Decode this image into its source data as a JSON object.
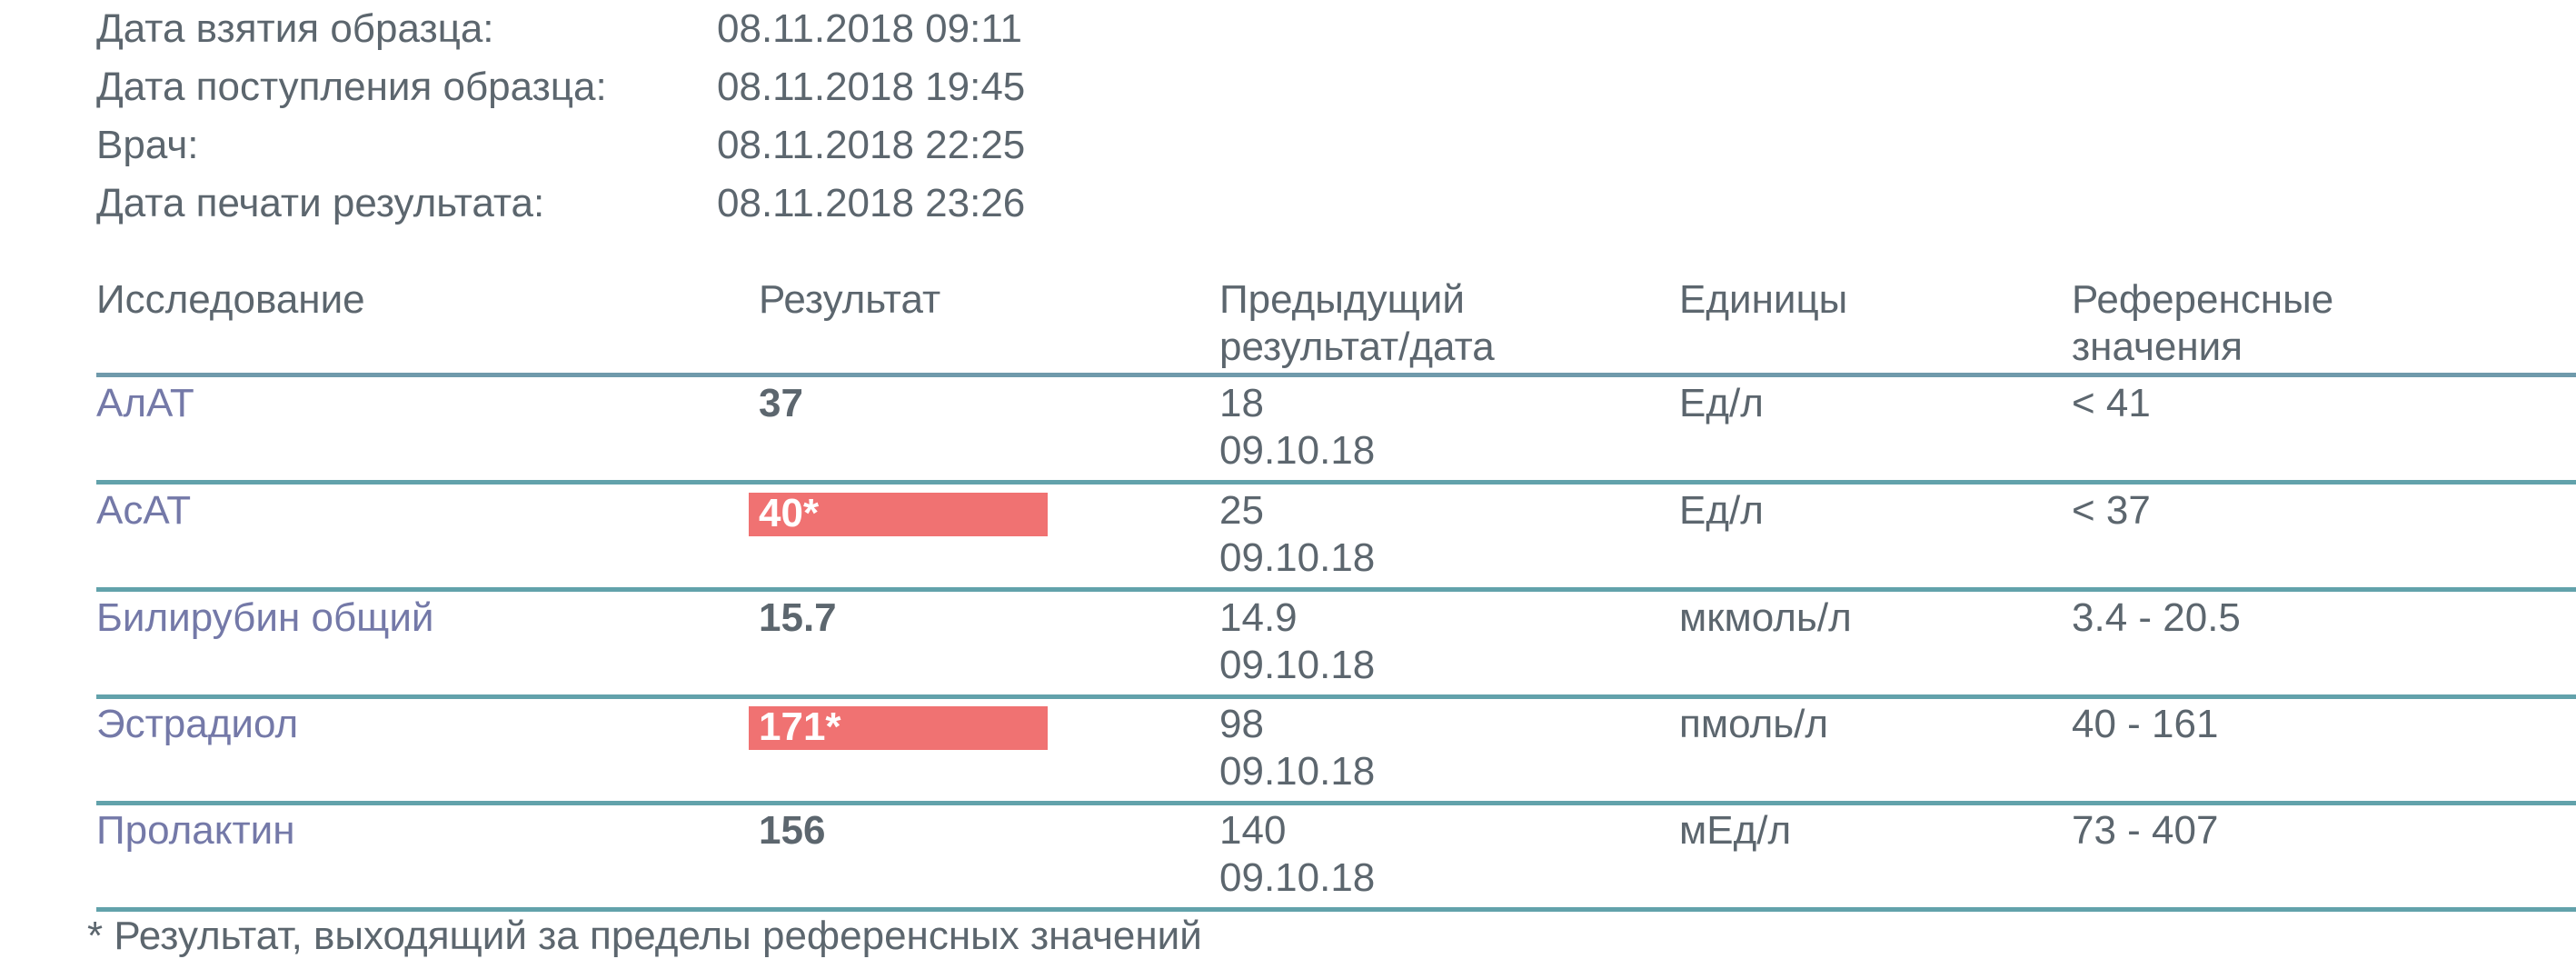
{
  "meta": [
    {
      "label": "Дата взятия образца:",
      "value": "08.11.2018 09:11"
    },
    {
      "label": "Дата поступления образца:",
      "value": "08.11.2018 19:45"
    },
    {
      "label": "Врач:",
      "value": "08.11.2018 22:25"
    },
    {
      "label": "Дата печати результата:",
      "value": "08.11.2018 23:26"
    }
  ],
  "table": {
    "headers": {
      "test": "Исследование",
      "result": "Результат",
      "previous": "Предыдущий\nрезультат/дата",
      "units": "Единицы",
      "reference": "Референсные\nзначения"
    },
    "rows": [
      {
        "name": "АлАТ",
        "result": "37",
        "flagged": false,
        "prev_value": "18",
        "prev_date": "09.10.18",
        "units": "Ед/л",
        "reference": "< 41"
      },
      {
        "name": "АсАТ",
        "result": "40*",
        "flagged": true,
        "prev_value": "25",
        "prev_date": "09.10.18",
        "units": "Ед/л",
        "reference": "< 37"
      },
      {
        "name": "Билирубин общий",
        "result": "15.7",
        "flagged": false,
        "prev_value": "14.9",
        "prev_date": "09.10.18",
        "units": "мкмоль/л",
        "reference": "3.4 - 20.5"
      },
      {
        "name": "Эстрадиол",
        "result": "171*",
        "flagged": true,
        "prev_value": "98",
        "prev_date": "09.10.18",
        "units": "пмоль/л",
        "reference": "40 - 161"
      },
      {
        "name": "Пролактин",
        "result": "156",
        "flagged": false,
        "prev_value": "140",
        "prev_date": "09.10.18",
        "units": "мЕд/л",
        "reference": "73 - 407"
      }
    ]
  },
  "footnote": "* Результат, выходящий за пределы референсных значений",
  "colors": {
    "text": "#5c666e",
    "test_name": "#7479a8",
    "flag_bg": "#f07272",
    "divider": "#62a2ab"
  }
}
